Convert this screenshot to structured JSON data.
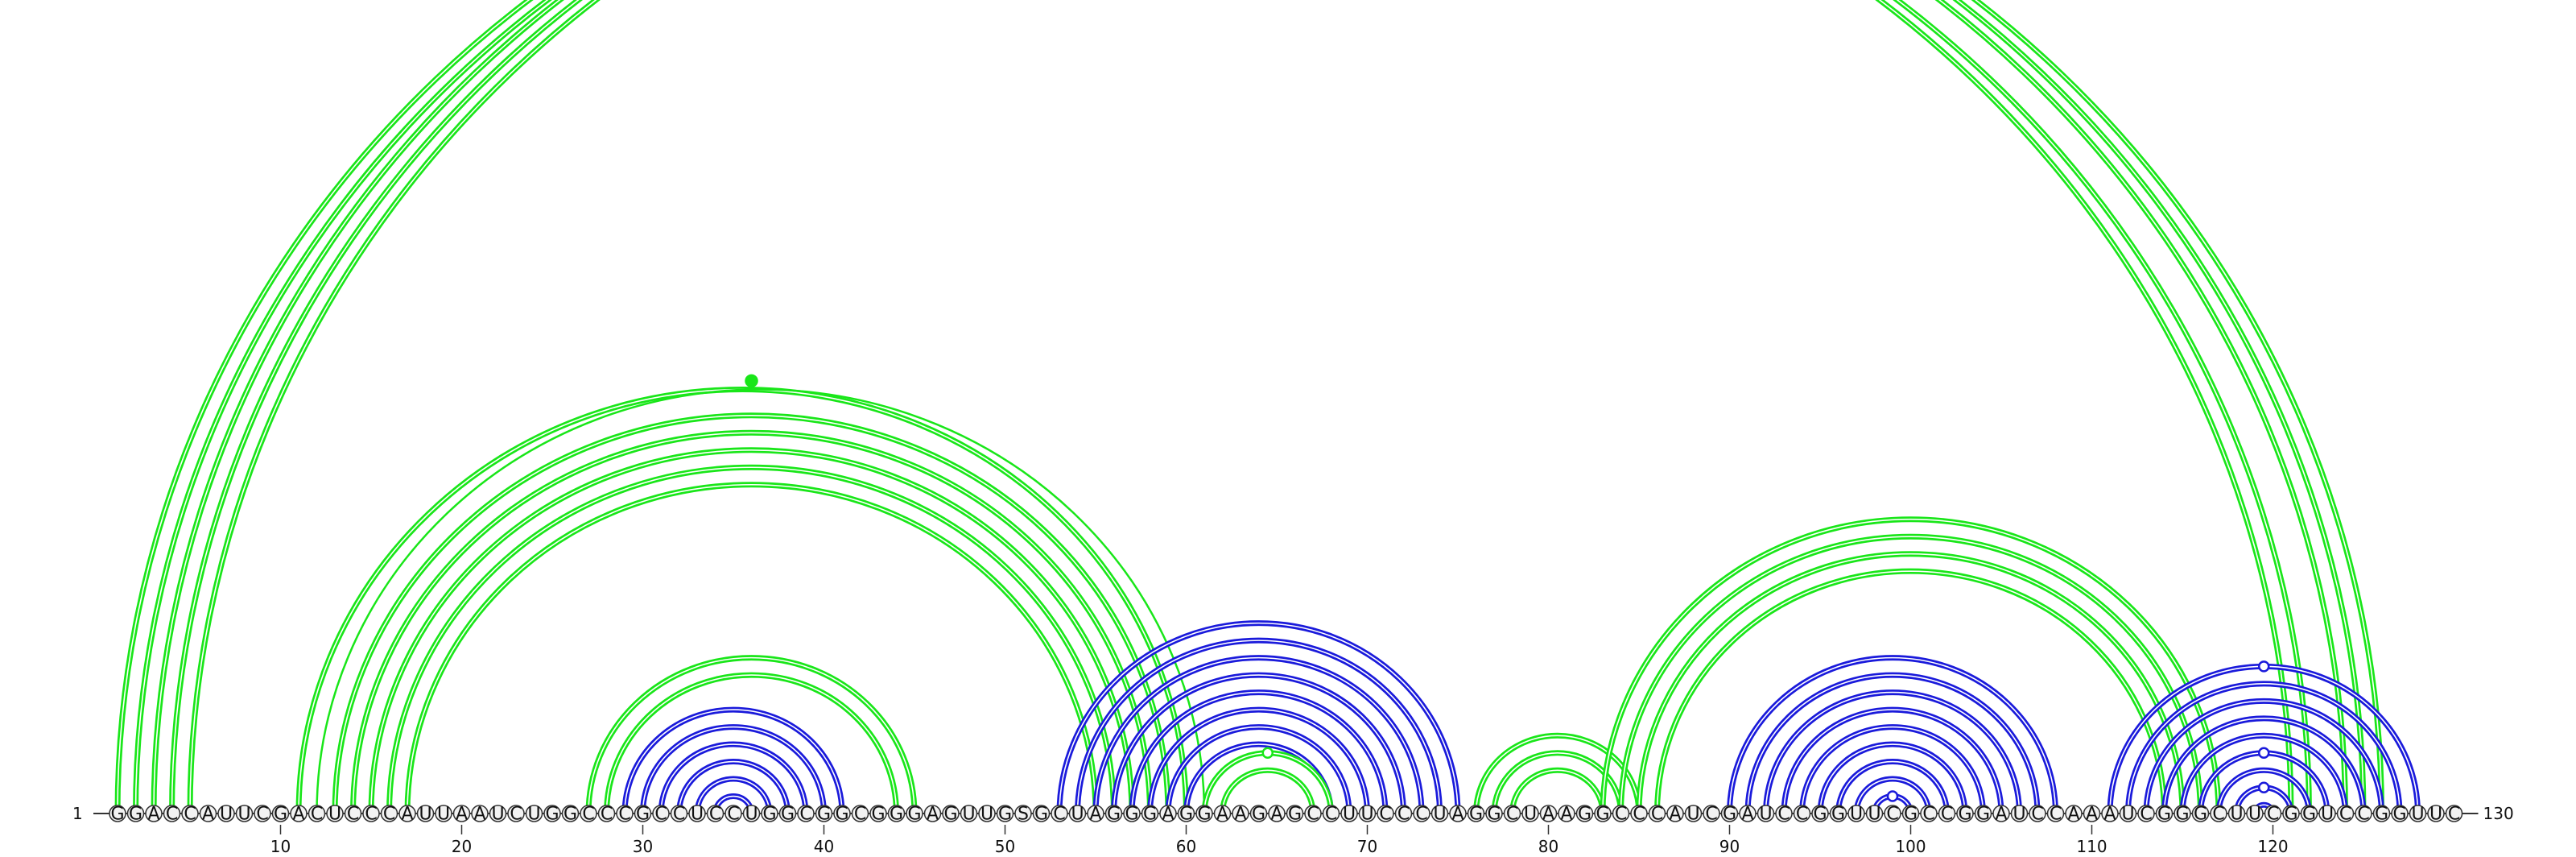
{
  "sequence": "GGACCAUUCGACUCCCAUUAAUCUGGCCCGCCUCCUGGCGGCGGGAGUUGSGCUAGGGAGGAAGAGCCUUCCCUAGGCUAAGGCCCAUCGAUCCGGUUCGCCGGAUCCAAAUCGGGCUUCGGUCCGGUUC",
  "start_label": "1",
  "end_label": "130",
  "tick_positions": [
    10,
    20,
    30,
    40,
    50,
    60,
    70,
    80,
    90,
    100,
    110,
    120
  ],
  "tick_labels": [
    "10",
    "20",
    "30",
    "40",
    "50",
    "60",
    "70",
    "80",
    "90",
    "100",
    "110",
    "120"
  ],
  "colors": {
    "green": "#19e619",
    "blue": "#1a1adb",
    "nucleotide_fill": "#f2f2f2",
    "nucleotide_stroke": "#333333"
  },
  "arc_groups": [
    {
      "color": "green",
      "doubled": true,
      "pairs": [
        [
          1,
          121
        ],
        [
          2,
          122
        ],
        [
          3,
          124
        ],
        [
          4,
          125
        ],
        [
          5,
          126
        ]
      ]
    },
    {
      "color": "green",
      "doubled": true,
      "pairs": [
        [
          11,
          60
        ],
        [
          13,
          59
        ],
        [
          14,
          58
        ],
        [
          15,
          57
        ],
        [
          16,
          56
        ],
        [
          17,
          55
        ]
      ]
    },
    {
      "color": "green",
      "doubled": false,
      "pairs": [
        [
          12,
          61
        ]
      ]
    },
    {
      "color": "green",
      "doubled": true,
      "pairs": [
        [
          27,
          45
        ],
        [
          28,
          44
        ]
      ]
    },
    {
      "color": "blue",
      "doubled": true,
      "pairs": [
        [
          29,
          41
        ],
        [
          30,
          40
        ],
        [
          31,
          39
        ],
        [
          32,
          38
        ],
        [
          33,
          37
        ],
        [
          34,
          36
        ]
      ]
    },
    {
      "color": "blue",
      "doubled": true,
      "pairs": [
        [
          53,
          75
        ],
        [
          54,
          74
        ],
        [
          55,
          73
        ],
        [
          56,
          72
        ],
        [
          57,
          71
        ],
        [
          58,
          70
        ],
        [
          59,
          69
        ],
        [
          60,
          68
        ]
      ]
    },
    {
      "color": "green",
      "doubled": true,
      "pairs": [
        [
          61,
          68
        ],
        [
          62,
          67
        ]
      ]
    },
    {
      "color": "green",
      "doubled": true,
      "pairs": [
        [
          76,
          85
        ],
        [
          77,
          84
        ],
        [
          78,
          83
        ]
      ]
    },
    {
      "color": "green",
      "doubled": true,
      "pairs": [
        [
          83,
          117
        ],
        [
          84,
          116
        ],
        [
          85,
          115
        ],
        [
          86,
          114
        ]
      ]
    },
    {
      "color": "blue",
      "doubled": true,
      "pairs": [
        [
          90,
          108
        ],
        [
          91,
          107
        ],
        [
          92,
          106
        ],
        [
          93,
          105
        ],
        [
          94,
          104
        ],
        [
          95,
          103
        ],
        [
          96,
          102
        ],
        [
          97,
          101
        ],
        [
          98,
          100
        ]
      ]
    },
    {
      "color": "blue",
      "doubled": true,
      "pairs": [
        [
          111,
          128
        ],
        [
          112,
          127
        ],
        [
          113,
          126
        ],
        [
          114,
          125
        ],
        [
          115,
          124
        ],
        [
          116,
          123
        ],
        [
          117,
          122
        ],
        [
          118,
          121
        ],
        [
          119,
          120
        ]
      ]
    }
  ],
  "markers": [
    {
      "between": [
        11,
        61
      ],
      "filled": true,
      "color": "green"
    },
    {
      "between": [
        61,
        68
      ],
      "filled": false,
      "color": "green"
    },
    {
      "between": [
        98,
        100
      ],
      "filled": false,
      "color": "blue"
    },
    {
      "between": [
        118,
        121
      ],
      "filled": false,
      "color": "blue"
    },
    {
      "between": [
        116,
        123
      ],
      "filled": false,
      "color": "blue"
    },
    {
      "between": [
        111,
        128
      ],
      "filled": false,
      "color": "blue"
    }
  ]
}
